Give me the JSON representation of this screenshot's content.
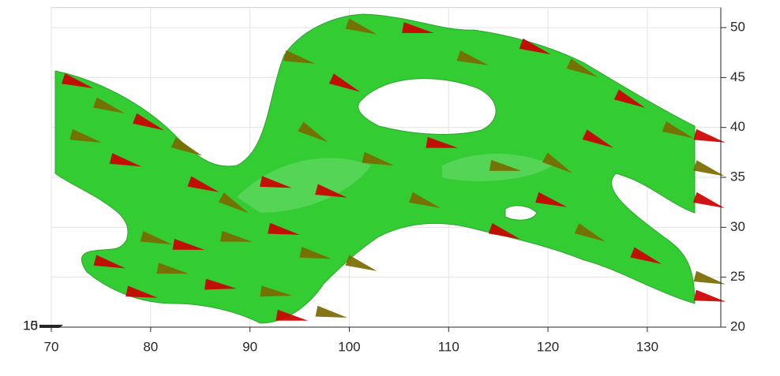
{
  "chart_data": {
    "type": "cone",
    "xlim": [
      70,
      137.4
    ],
    "xticks": [
      70,
      80,
      90,
      100,
      110,
      120,
      130
    ],
    "ylim": [
      20,
      52
    ],
    "yticks": [
      20,
      25,
      30,
      35,
      40,
      45,
      50
    ],
    "zticks": [
      10,
      15
    ],
    "grid": true,
    "surface_color": "#33cc33",
    "series": [
      {
        "color": "#cc0000",
        "x": [
          71.2,
          78.4,
          76,
          83.9,
          91.1,
          98.2,
          105.4,
          117.3,
          126.9,
          134.8,
          134.8,
          134.8,
          128.5,
          118.9,
          107.8,
          96.7,
          114.2,
          123.7,
          82.3,
          91.9,
          74.4,
          85.5,
          92.7,
          77.6
        ],
        "y": [
          44.9,
          40.9,
          36.9,
          34.6,
          34.6,
          44.9,
          50,
          48.4,
          43.3,
          39.3,
          33,
          23.2,
          27.5,
          33,
          38.5,
          33.8,
          29.9,
          39.3,
          28.3,
          29.9,
          26.7,
          24.3,
          21.2,
          23.6
        ],
        "angle": [
          18,
          22,
          15,
          20,
          12,
          25,
          10,
          20,
          25,
          15,
          20,
          12,
          22,
          18,
          10,
          15,
          20,
          25,
          10,
          12,
          15,
          8,
          10,
          12
        ]
      },
      {
        "color": "#7a6a00",
        "x": [
          74.4,
          72,
          82.3,
          87.1,
          93.5,
          99.8,
          111,
          122.1,
          131.7,
          134.8,
          134.8,
          122.9,
          114.2,
          101.4,
          106.2,
          119.7,
          79.1,
          87.1,
          95.1,
          80.7,
          91.1,
          96.7,
          99.8,
          95.1
        ],
        "y": [
          42.5,
          39.3,
          38.5,
          33,
          47.2,
          50.4,
          47.2,
          46.4,
          40.1,
          36.2,
          25.1,
          29.9,
          36.2,
          37,
          33,
          37,
          29.1,
          29.1,
          27.5,
          25.9,
          23.6,
          21.6,
          26.7,
          40.1
        ],
        "angle": [
          20,
          15,
          25,
          30,
          15,
          20,
          18,
          25,
          22,
          20,
          15,
          25,
          10,
          15,
          20,
          30,
          15,
          10,
          12,
          10,
          8,
          12,
          20,
          30
        ]
      }
    ]
  }
}
